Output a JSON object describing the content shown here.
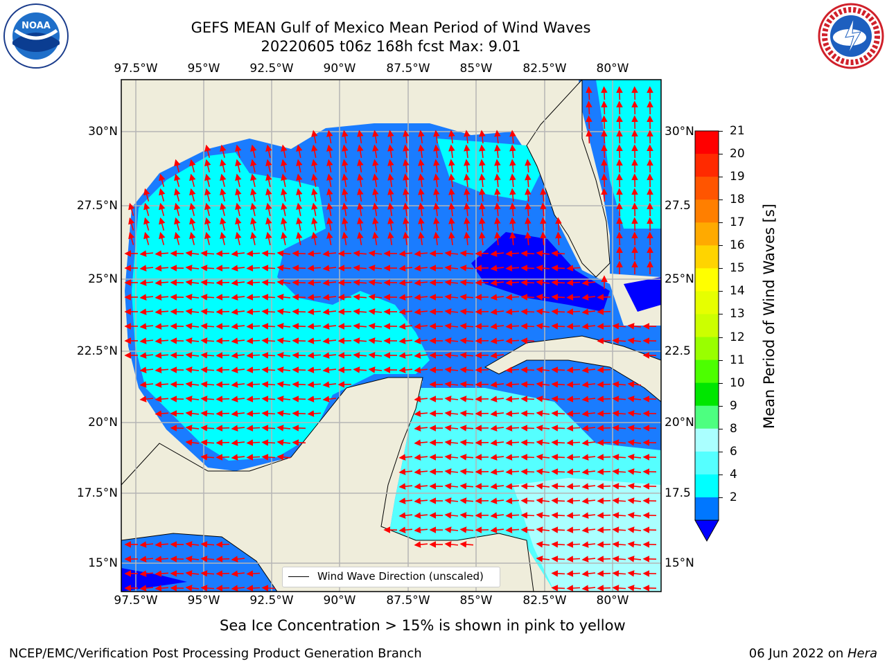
{
  "title_line1": "GEFS MEAN Gulf of Mexico Mean Period of Wind Waves",
  "title_line2": "20220605 t06z 168h fcst   Max: 9.01",
  "lon_ticks": [
    "97.5°W",
    "95°W",
    "92.5°W",
    "90°W",
    "87.5°W",
    "85°W",
    "82.5°W",
    "80°W"
  ],
  "lat_ticks_left": [
    "30°N",
    "27.5°N",
    "25°N",
    "22.5°N",
    "20°N",
    "17.5°N",
    "15°N"
  ],
  "lat_ticks_right": [
    "30°N",
    "27.5",
    "25°N",
    "22.5",
    "20°N",
    "17.5",
    "15°N"
  ],
  "legend_text": "Wind Wave Direction (unscaled)",
  "colorbar": {
    "label": "Mean Period of Wind Waves [s]",
    "ticks": [
      "21",
      "20",
      "19",
      "18",
      "17",
      "16",
      "15",
      "14",
      "13",
      "12",
      "11",
      "10",
      "9",
      "8",
      "6",
      "4",
      "2"
    ],
    "colors": [
      "#ff0000",
      "#ff2a00",
      "#ff5500",
      "#ff7f00",
      "#ffaa00",
      "#ffd400",
      "#ffff00",
      "#e6ff00",
      "#ccff00",
      "#99ff00",
      "#4cff00",
      "#00e600",
      "#4dff80",
      "#aaffff",
      "#55ffff",
      "#00ffff",
      "#0077ff"
    ],
    "extend_color": "#0000ff"
  },
  "sea_ice_note": "Sea Ice Concentration > 15% is shown in pink to yellow",
  "footer_left": "NCEP/EMC/Verification Post Processing Product Generation Branch",
  "footer_right_date": "06 Jun 2022 on ",
  "footer_right_machine": "Hera",
  "logos": {
    "left": "noaa-logo",
    "right": "nws-logo"
  }
}
